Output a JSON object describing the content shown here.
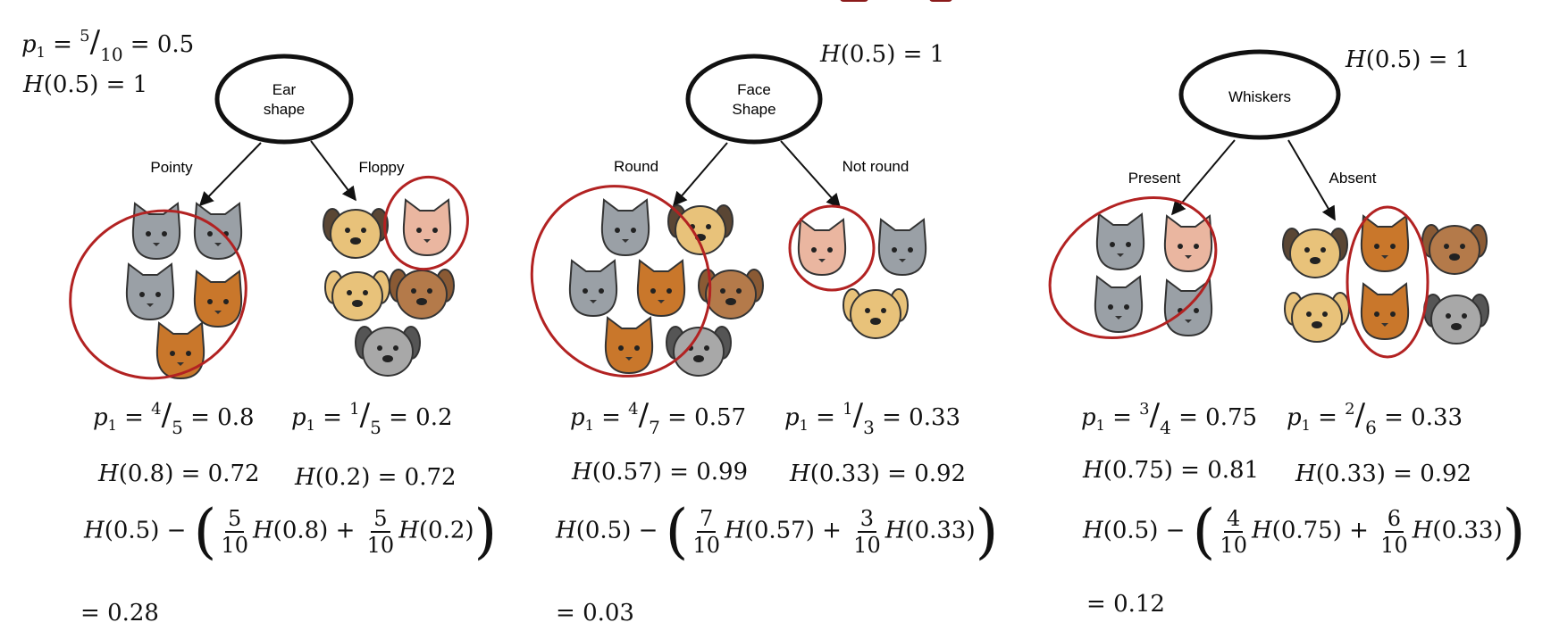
{
  "global": {
    "p1_num": "5",
    "p1_den": "10",
    "p1_val": "0.5",
    "h_arg": "0.5",
    "h_val": "1"
  },
  "splits": [
    {
      "feature": [
        "Ear",
        "shape"
      ],
      "left_label": "Pointy",
      "right_label": "Floppy",
      "h_root_arg": "0.5",
      "h_root_val": "1",
      "left": {
        "num": "4",
        "den": "5",
        "p": "0.8",
        "h_arg": "0.8",
        "h_val": "0.72"
      },
      "right": {
        "num": "1",
        "den": "5",
        "p": "0.2",
        "h_arg": "0.2",
        "h_val": "0.72"
      },
      "w_left": {
        "num": "5",
        "den": "10"
      },
      "w_right": {
        "num": "5",
        "den": "10"
      },
      "gain": "0.28"
    },
    {
      "feature": [
        "Face",
        "Shape"
      ],
      "left_label": "Round",
      "right_label": "Not round",
      "h_root_arg": "0.5",
      "h_root_val": "1",
      "left": {
        "num": "4",
        "den": "7",
        "p": "0.57",
        "h_arg": "0.57",
        "h_val": "0.99"
      },
      "right": {
        "num": "1",
        "den": "3",
        "p": "0.33",
        "h_arg": "0.33",
        "h_val": "0.92"
      },
      "w_left": {
        "num": "7",
        "den": "10"
      },
      "w_right": {
        "num": "3",
        "den": "10"
      },
      "gain": "0.03"
    },
    {
      "feature": [
        "Whiskers"
      ],
      "left_label": "Present",
      "right_label": "Absent",
      "h_root_arg": "0.5",
      "h_root_val": "1",
      "left": {
        "num": "3",
        "den": "4",
        "p": "0.75",
        "h_arg": "0.75",
        "h_val": "0.81"
      },
      "right": {
        "num": "2",
        "den": "6",
        "p": "0.33",
        "h_arg": "0.33",
        "h_val": "0.92"
      },
      "w_left": {
        "num": "4",
        "den": "10"
      },
      "w_right": {
        "num": "6",
        "den": "10"
      },
      "gain": "0.12"
    }
  ],
  "colors": {
    "circle": "#b22222",
    "title": "#8b1a1a",
    "cat_gray": "#9aa0a6",
    "cat_orange": "#c9772b",
    "dog_tan": "#e8c27a",
    "dog_brown": "#b47a4a",
    "dog_gray": "#a8a8a8",
    "cat_pink": "#eab6a0"
  },
  "icons": {
    "cat": "cat-face-icon",
    "dog": "dog-face-icon"
  }
}
